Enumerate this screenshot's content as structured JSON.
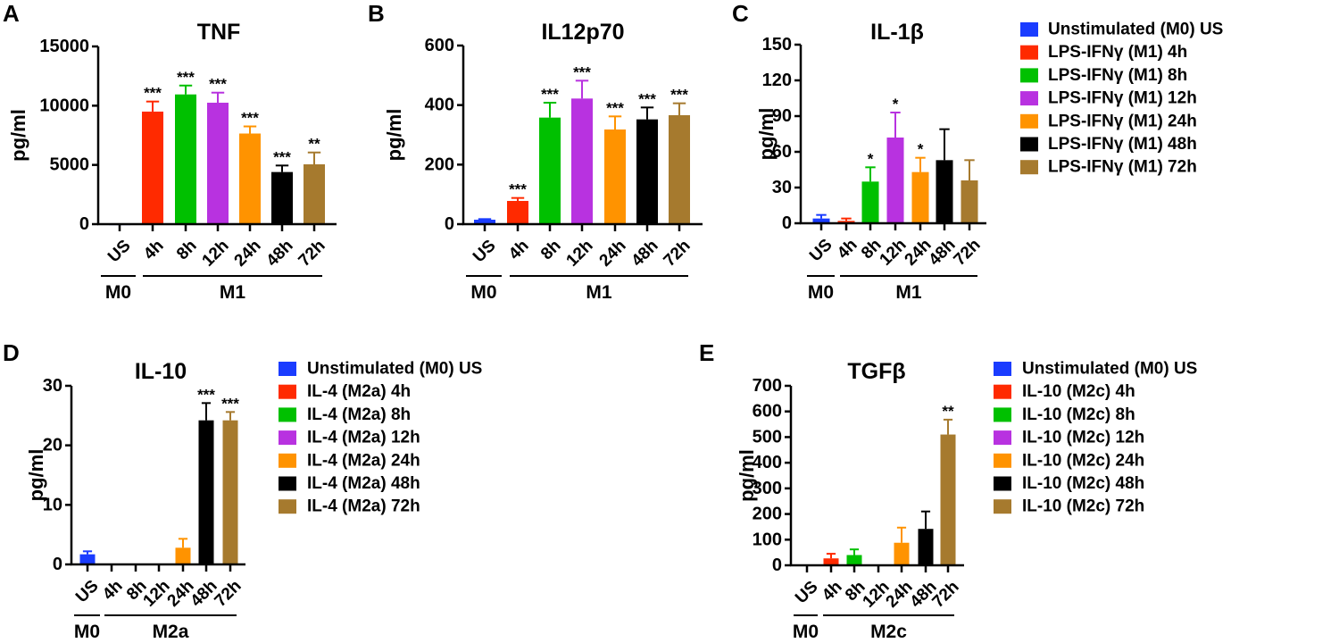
{
  "colors": [
    "#1a3cff",
    "#ff2a00",
    "#00c000",
    "#b832e0",
    "#ff9300",
    "#000000",
    "#a67a2e"
  ],
  "chart_data": [
    {
      "panel": "A",
      "type": "bar",
      "title": "TNF",
      "ylabel": "pg/ml",
      "ylim": [
        0,
        15000
      ],
      "yticks": [
        0,
        5000,
        10000,
        15000
      ],
      "categories": [
        "US",
        "4h",
        "8h",
        "12h",
        "24h",
        "48h",
        "72h"
      ],
      "values": [
        30,
        9500,
        10950,
        10250,
        7650,
        4400,
        5050
      ],
      "error_upper": [
        30,
        10350,
        11700,
        11100,
        8250,
        4950,
        6050
      ],
      "significance": [
        "",
        "***",
        "***",
        "***",
        "***",
        "***",
        "**"
      ],
      "groups": [
        {
          "label": "M0"
        },
        {
          "label": "M1"
        }
      ]
    },
    {
      "panel": "B",
      "type": "bar",
      "title": "IL12p70",
      "ylabel": "pg/ml",
      "ylim": [
        0,
        600
      ],
      "yticks": [
        0,
        200,
        400,
        600
      ],
      "categories": [
        "US",
        "4h",
        "8h",
        "12h",
        "24h",
        "48h",
        "72h"
      ],
      "values": [
        15,
        78,
        358,
        422,
        318,
        352,
        366
      ],
      "error_upper": [
        17,
        88,
        408,
        482,
        362,
        392,
        406
      ],
      "significance": [
        "",
        "***",
        "***",
        "***",
        "***",
        "***",
        "***"
      ],
      "groups": [
        {
          "label": "M0"
        },
        {
          "label": "M1"
        }
      ]
    },
    {
      "panel": "C",
      "type": "bar",
      "title": "IL-1β",
      "ylabel": "pg/ml",
      "ylim": [
        0,
        150
      ],
      "yticks": [
        0,
        30,
        60,
        90,
        120,
        150
      ],
      "categories": [
        "US",
        "4h",
        "8h",
        "12h",
        "24h",
        "48h",
        "72h"
      ],
      "values": [
        4,
        2,
        35,
        72,
        43,
        53,
        36
      ],
      "error_upper": [
        7,
        4,
        47,
        93,
        55,
        79,
        53
      ],
      "significance": [
        "",
        "",
        "*",
        "*",
        "*",
        "",
        ""
      ],
      "groups": [
        {
          "label": "M0"
        },
        {
          "label": "M1"
        }
      ],
      "legend": [
        "Unstimulated (M0) US",
        "LPS-IFNγ (M1) 4h",
        "LPS-IFNγ (M1) 8h",
        "LPS-IFNγ (M1) 12h",
        "LPS-IFNγ (M1) 24h",
        "LPS-IFNγ (M1) 48h",
        "LPS-IFNγ (M1) 72h"
      ]
    },
    {
      "panel": "D",
      "type": "bar",
      "title": "IL-10",
      "ylabel": "pg/ml",
      "ylim": [
        0,
        30
      ],
      "yticks": [
        0,
        10,
        20,
        30
      ],
      "categories": [
        "US",
        "4h",
        "8h",
        "12h",
        "24h",
        "48h",
        "72h"
      ],
      "values": [
        1.7,
        0,
        0,
        0,
        2.8,
        24.2,
        24.2
      ],
      "error_upper": [
        2.2,
        0,
        0,
        0,
        4.3,
        27.1,
        25.6
      ],
      "significance": [
        "",
        "",
        "",
        "",
        "",
        "***",
        "***"
      ],
      "groups": [
        {
          "label": "M0"
        },
        {
          "label": "M2a"
        }
      ],
      "legend": [
        "Unstimulated (M0) US",
        "IL-4 (M2a) 4h",
        "IL-4 (M2a) 8h",
        "IL-4 (M2a) 12h",
        "IL-4 (M2a) 24h",
        "IL-4 (M2a) 48h",
        "IL-4 (M2a) 72h"
      ]
    },
    {
      "panel": "E",
      "type": "bar",
      "title": "TGFβ",
      "ylabel": "pg/ml",
      "ylim": [
        0,
        700
      ],
      "yticks": [
        0,
        100,
        200,
        300,
        400,
        500,
        600,
        700
      ],
      "categories": [
        "US",
        "4h",
        "8h",
        "12h",
        "24h",
        "48h",
        "72h"
      ],
      "values": [
        0,
        27,
        40,
        0,
        88,
        142,
        510
      ],
      "error_upper": [
        0,
        45,
        62,
        0,
        147,
        210,
        568
      ],
      "significance": [
        "",
        "",
        "",
        "",
        "",
        "",
        "**"
      ],
      "groups": [
        {
          "label": "M0"
        },
        {
          "label": "M2c"
        }
      ],
      "legend": [
        "Unstimulated (M0) US",
        "IL-10 (M2c) 4h",
        "IL-10 (M2c) 8h",
        "IL-10 (M2c) 12h",
        "IL-10 (M2c) 24h",
        "IL-10 (M2c) 48h",
        "IL-10 (M2c) 72h"
      ]
    }
  ]
}
